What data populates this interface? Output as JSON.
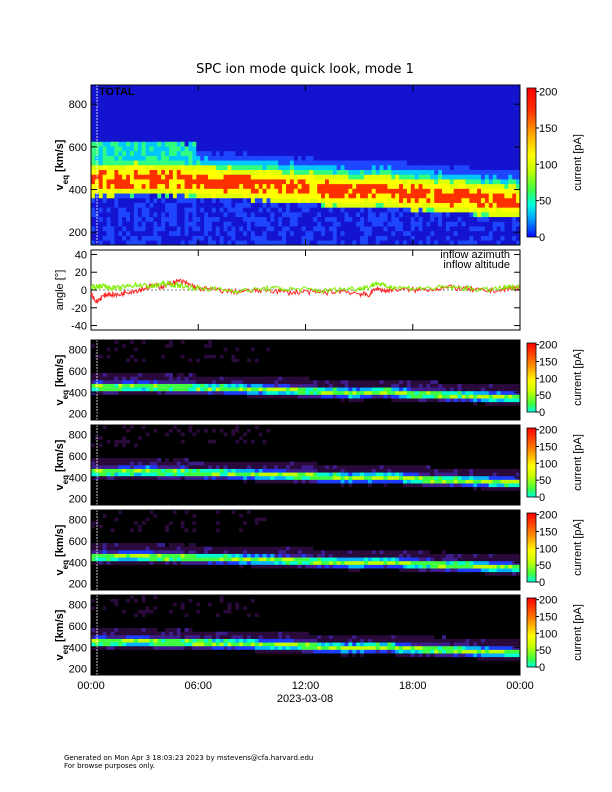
{
  "title": "SPC ion mode quick look, mode 1",
  "footer": {
    "line1": "Generated on Mon Apr  3 18:03:23 2023 by mstevens@cfa.harvard.edu",
    "line2": "For browse purposes only."
  },
  "date_label": "2023-03-08",
  "total_label": "TOTAL",
  "chart_data": [
    {
      "type": "heatmap",
      "panel": "total",
      "ylabel_main": "v",
      "ylabel_sub": "eq",
      "ylabel_unit": "[km/s]",
      "yticks": [
        200,
        400,
        600,
        800
      ],
      "ylim": [
        140,
        890
      ],
      "xlim": [
        0,
        24
      ],
      "cbar_label": "current [pA]",
      "cbar_ticks": [
        0,
        50,
        100,
        150,
        200
      ],
      "cbar_range": [
        0,
        205
      ],
      "label": "TOTAL"
    },
    {
      "type": "line",
      "panel": "angles",
      "ylabel": "angle [°]",
      "yticks": [
        -40,
        -20,
        0,
        20,
        40
      ],
      "ylim": [
        -45,
        45
      ],
      "xlim": [
        0,
        24
      ],
      "series": [
        {
          "name": "inflow azimuth",
          "color": "#ff2a2a",
          "x": [
            0,
            0.3,
            0.6,
            1,
            1.5,
            2,
            2.5,
            3,
            3.5,
            4,
            4.5,
            5,
            5.5,
            6,
            7,
            8,
            9,
            10,
            11,
            12,
            13,
            14,
            15,
            15.5,
            16,
            16.5,
            17,
            18,
            19,
            20,
            21,
            22,
            23,
            23.5,
            24
          ],
          "y": [
            -3,
            -14,
            -8,
            -4,
            -6,
            -2,
            -1,
            2,
            5,
            4,
            8,
            10,
            6,
            2,
            0,
            -2,
            -1,
            0,
            -3,
            -2,
            -3,
            -1,
            -4,
            -6,
            2,
            -1,
            1,
            0,
            1,
            3,
            1,
            -1,
            0,
            2,
            3
          ]
        },
        {
          "name": "inflow altitude",
          "color": "#7ef000",
          "x": [
            0,
            0.3,
            0.6,
            1,
            1.5,
            2,
            2.5,
            3,
            3.5,
            4,
            4.5,
            5,
            5.5,
            6,
            7,
            8,
            9,
            10,
            11,
            12,
            13,
            14,
            15,
            15.5,
            16,
            16.5,
            17,
            18,
            19,
            20,
            21,
            22,
            23,
            23.5,
            24
          ],
          "y": [
            2,
            4,
            5,
            3,
            2,
            4,
            6,
            5,
            4,
            7,
            6,
            5,
            3,
            2,
            1,
            -1,
            0,
            2,
            1,
            1,
            -1,
            1,
            2,
            3,
            8,
            4,
            3,
            2,
            2,
            3,
            2,
            0,
            2,
            3,
            4
          ]
        }
      ]
    },
    {
      "type": "heatmap",
      "panel": "cup1",
      "ylabel_main": "v",
      "ylabel_sub": "eq",
      "ylabel_unit": "[km/s]",
      "yticks": [
        200,
        400,
        600,
        800
      ],
      "ylim": [
        140,
        890
      ],
      "xlim": [
        0,
        24
      ],
      "cbar_label": "current [pA]",
      "cbar_ticks": [
        0,
        50,
        100,
        150,
        200
      ],
      "cbar_range": [
        0,
        205
      ]
    },
    {
      "type": "heatmap",
      "panel": "cup2",
      "ylabel_main": "v",
      "ylabel_sub": "eq",
      "ylabel_unit": "[km/s]",
      "yticks": [
        200,
        400,
        600,
        800
      ],
      "ylim": [
        140,
        890
      ],
      "xlim": [
        0,
        24
      ],
      "cbar_label": "current [pA]",
      "cbar_ticks": [
        0,
        50,
        100,
        150,
        200
      ],
      "cbar_range": [
        0,
        205
      ]
    },
    {
      "type": "heatmap",
      "panel": "cup3",
      "ylabel_main": "v",
      "ylabel_sub": "eq",
      "ylabel_unit": "[km/s]",
      "yticks": [
        200,
        400,
        600,
        800
      ],
      "ylim": [
        140,
        890
      ],
      "xlim": [
        0,
        24
      ],
      "cbar_label": "current [pA]",
      "cbar_ticks": [
        0,
        50,
        100,
        150,
        200
      ],
      "cbar_range": [
        0,
        205
      ]
    },
    {
      "type": "heatmap",
      "panel": "cup4",
      "ylabel_main": "v",
      "ylabel_sub": "eq",
      "ylabel_unit": "[km/s]",
      "yticks": [
        200,
        400,
        600,
        800
      ],
      "ylim": [
        140,
        890
      ],
      "xlim": [
        0,
        24
      ],
      "cbar_label": "current [pA]",
      "cbar_ticks": [
        0,
        50,
        100,
        150,
        200
      ],
      "cbar_range": [
        0,
        205
      ]
    }
  ],
  "xaxis": {
    "ticks": [
      "00:00",
      "06:00",
      "12:00",
      "18:00",
      "00:00"
    ],
    "tick_hours": [
      0,
      6,
      12,
      18,
      24
    ]
  },
  "plasma_track": {
    "hours": [
      0,
      1,
      2,
      3,
      4,
      5,
      6,
      7,
      8,
      9,
      10,
      11,
      12,
      13,
      14,
      15,
      16,
      17,
      18,
      19,
      20,
      21,
      22,
      23,
      24
    ],
    "speed_km_s": [
      455,
      450,
      455,
      458,
      448,
      450,
      445,
      440,
      438,
      430,
      425,
      420,
      415,
      405,
      400,
      395,
      405,
      400,
      385,
      380,
      375,
      370,
      360,
      355,
      350
    ]
  }
}
